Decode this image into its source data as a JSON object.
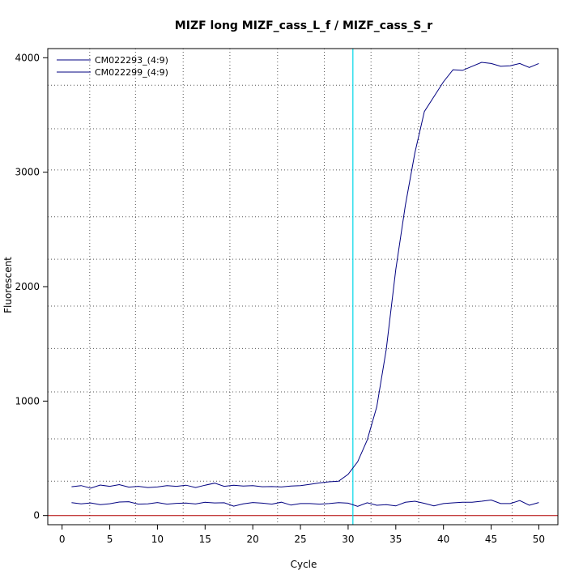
{
  "chart_data": {
    "type": "line",
    "title": "MIZF long MIZF_cass_L_f / MIZF_cass_S_r",
    "xlabel": "Cycle",
    "ylabel": "Fluorescent",
    "xlim": [
      -1.5,
      52
    ],
    "ylim": [
      -80,
      4080
    ],
    "xticks": [
      0,
      5,
      10,
      15,
      20,
      25,
      30,
      35,
      40,
      45,
      50
    ],
    "yticks": [
      0,
      1000,
      2000,
      3000,
      4000
    ],
    "grid": "dotted",
    "grid_x": [
      2.9,
      7.7,
      12.7,
      17.6,
      22.6,
      27.5,
      32.4,
      37.4,
      42.3,
      47.2
    ],
    "grid_y": [
      300,
      670,
      1080,
      1460,
      1830,
      2240,
      2610,
      3020,
      3380,
      3760
    ],
    "threshold_cycle": 30.5,
    "baseline": 0,
    "legend_position": "top-left",
    "x": [
      1,
      2,
      3,
      4,
      5,
      6,
      7,
      8,
      9,
      10,
      11,
      12,
      13,
      14,
      15,
      16,
      17,
      18,
      19,
      20,
      21,
      22,
      23,
      24,
      25,
      26,
      27,
      28,
      29,
      30,
      31,
      32,
      33,
      34,
      35,
      36,
      37,
      38,
      39,
      40,
      41,
      42,
      43,
      44,
      45,
      46,
      47,
      48,
      49,
      50
    ],
    "series": [
      {
        "name": "CM022293_(4:9)",
        "color": "#000080",
        "values": [
          252,
          262,
          240,
          267,
          255,
          270,
          248,
          255,
          245,
          250,
          262,
          255,
          265,
          245,
          265,
          283,
          255,
          265,
          258,
          262,
          252,
          253,
          250,
          258,
          262,
          273,
          285,
          295,
          300,
          360,
          470,
          660,
          950,
          1450,
          2150,
          2710,
          3170,
          3530,
          3660,
          3790,
          3895,
          3890,
          3925,
          3960,
          3950,
          3925,
          3930,
          3950,
          3915,
          3950
        ]
      },
      {
        "name": "CM022299_(4:9)",
        "color": "#000080",
        "values": [
          113,
          102,
          110,
          95,
          103,
          118,
          121,
          100,
          102,
          114,
          100,
          107,
          109,
          101,
          116,
          110,
          112,
          82,
          102,
          114,
          108,
          100,
          117,
          91,
          105,
          105,
          100,
          105,
          113,
          108,
          80,
          112,
          90,
          95,
          84,
          116,
          125,
          107,
          85,
          105,
          111,
          116,
          117,
          125,
          136,
          105,
          105,
          131,
          90,
          114
        ]
      }
    ]
  },
  "colors": {
    "series": "#000080",
    "threshold": "#00d8e8",
    "baseline": "#b00000",
    "grid": "#555555"
  }
}
